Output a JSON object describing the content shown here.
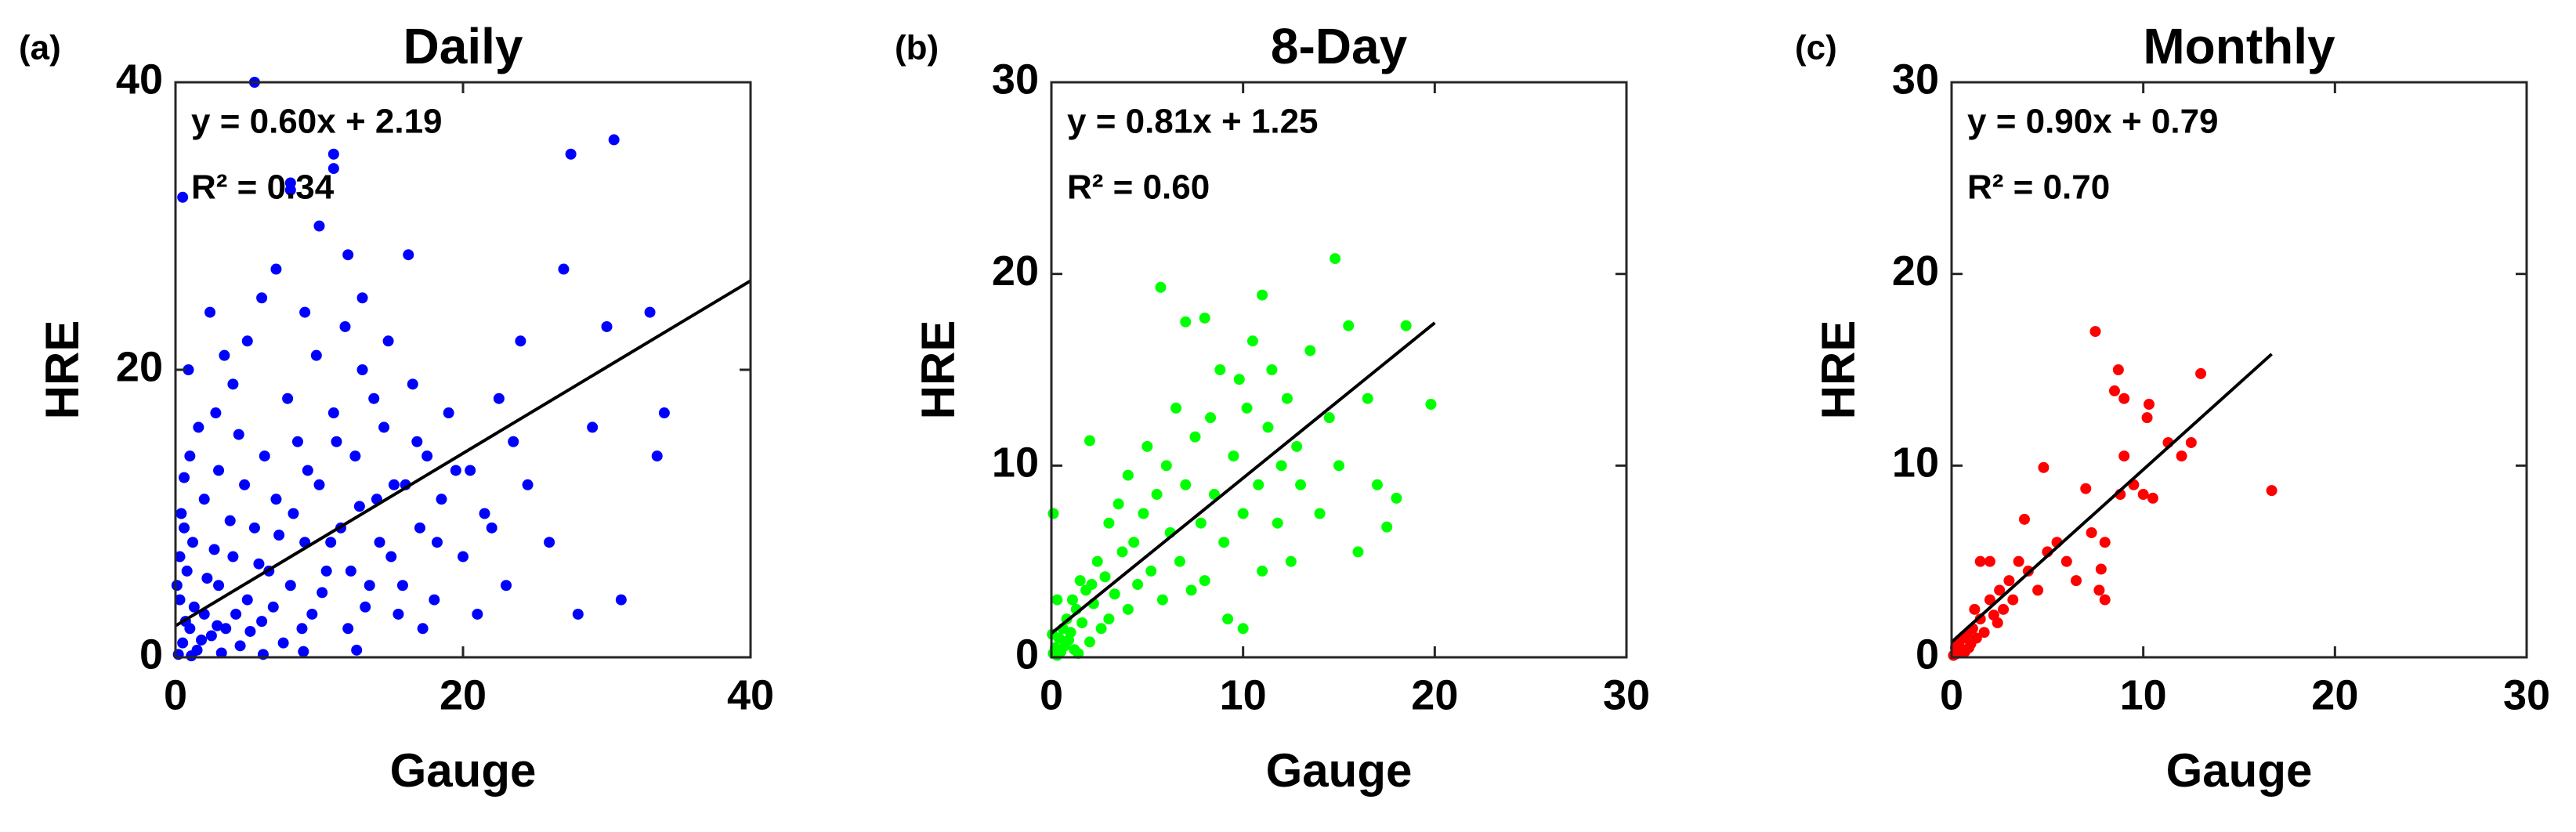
{
  "chart_data": [
    {
      "type": "scatter",
      "panel_label": "(a)",
      "title": "Daily",
      "equation": "y = 0.60x + 2.19",
      "r_squared": "R² = 0.34",
      "x_label": "Gauge",
      "y_label": "HRE",
      "xlim": [
        0,
        40
      ],
      "ylim": [
        0,
        40
      ],
      "xticks": [
        0,
        20,
        40
      ],
      "yticks": [
        0,
        20,
        40
      ],
      "series": [
        {
          "color": "#0000ff",
          "x": [
            0.5,
            1,
            0.3,
            1.5,
            2,
            0.8,
            2.5,
            3,
            1.2,
            0.4,
            3.5,
            4,
            2,
            4.5,
            5,
            1,
            5.5,
            6,
            3,
            6.5,
            7,
            0.6,
            7.5,
            8,
            2.8,
            8.5,
            9,
            4,
            9.5,
            10,
            5,
            10.5,
            11,
            6,
            11.5,
            12,
            7,
            12.5,
            13,
            8,
            13.5,
            14,
            9,
            14.5,
            15,
            10,
            15.5,
            16,
            11,
            16.5,
            17,
            12,
            17.5,
            18,
            13,
            18.5,
            19,
            20,
            20.5,
            21,
            22,
            22.5,
            23,
            24,
            24.5,
            26,
            27,
            27.5,
            28,
            29,
            30,
            30.5,
            31,
            33,
            33.5,
            34,
            5.5,
            0.5,
            8,
            11,
            0.2,
            0.7,
            1.3,
            1.8,
            2.2,
            2.7,
            3.2,
            3.8,
            4.2,
            4.8,
            5.2,
            5.8,
            6.2,
            6.8,
            7.2,
            7.8,
            8.2,
            8.8,
            9.2,
            9.8,
            10.2,
            10.8,
            11.2,
            11.8,
            12.2,
            12.8,
            13.2,
            13.8,
            14.2,
            14.8,
            15.2,
            15.8,
            16.2,
            16.8,
            17.2,
            18.2,
            19.5,
            21.5,
            23.5,
            0.9,
            1.6,
            2.4,
            3.4,
            4.4,
            0.1,
            0.3,
            1.1,
            2.9,
            6.1,
            8.9,
            12.6,
            0.6
          ],
          "values": [
            1,
            2,
            4,
            0.5,
            3,
            6,
            1.5,
            5,
            8,
            10,
            2,
            7,
            11,
            0.8,
            4,
            14,
            9,
            2.5,
            13,
            6,
            11,
            12.5,
            1,
            5,
            17,
            15,
            8,
            19,
            3,
            12,
            22,
            6,
            17,
            25,
            9,
            2,
            27,
            14,
            20,
            33,
            5,
            11,
            24,
            16,
            7,
            30,
            3,
            12,
            35,
            19,
            9,
            28,
            14,
            4,
            25,
            11,
            17,
            7,
            13,
            3,
            9,
            18,
            5,
            22,
            12,
            8,
            27,
            35,
            3,
            16,
            23,
            36,
            4,
            24,
            14,
            17,
            40,
            32,
            32.5,
            34,
            0.2,
            2.5,
            3.5,
            1.2,
            5.5,
            7.5,
            0.3,
            9.5,
            3,
            12,
            1.8,
            6.5,
            14,
            3.5,
            8.5,
            18,
            10,
            2,
            13,
            21,
            4.5,
            8,
            15,
            23,
            6,
            10.5,
            3.5,
            18,
            8,
            22,
            12,
            5,
            28,
            15,
            2,
            8,
            13,
            10,
            15,
            20,
            16,
            24,
            21,
            15.5,
            5,
            7,
            0.1,
            2.2,
            0.2,
            0.4,
            0.5,
            9
          ]
        }
      ],
      "fit_line": {
        "color": "#000000",
        "x": [
          0,
          40
        ],
        "values": [
          2.19,
          26.19
        ]
      }
    },
    {
      "type": "scatter",
      "panel_label": "(b)",
      "title": "8-Day",
      "equation": "y = 0.81x + 1.25",
      "r_squared": "R² = 0.60",
      "x_label": "Gauge",
      "y_label": "HRE",
      "xlim": [
        0,
        30
      ],
      "ylim": [
        0,
        30
      ],
      "xticks": [
        0,
        10,
        20,
        30
      ],
      "yticks": [
        0,
        10,
        20,
        30
      ],
      "series": [
        {
          "color": "#00ff00",
          "x": [
            0.1,
            0.2,
            0.3,
            0.4,
            0.5,
            0.6,
            0.7,
            0.8,
            0.9,
            1,
            1.1,
            1.2,
            1.3,
            1.5,
            1.6,
            1.8,
            2,
            2,
            2.2,
            2.4,
            2.6,
            2.8,
            3,
            3,
            3.3,
            3.5,
            3.7,
            4,
            4,
            4.3,
            4.5,
            4.8,
            5,
            5.2,
            5.5,
            5.7,
            5.8,
            6,
            6.2,
            6.5,
            6.7,
            7,
            7,
            7.3,
            7.5,
            7.8,
            8,
            8,
            8.3,
            8.5,
            8.8,
            9,
            9.2,
            9.5,
            9.8,
            10,
            10,
            10.2,
            10.5,
            10.8,
            11,
            11,
            11.3,
            11.5,
            11.8,
            12,
            12.3,
            12.5,
            12.8,
            13,
            13.5,
            14,
            14.5,
            14.8,
            15,
            15.5,
            16,
            16.5,
            17,
            17.5,
            18,
            18.5,
            19.8,
            0.1,
            0.3,
            1.4,
            2.1,
            0.05
          ],
          "values": [
            0.2,
            0.5,
            0.1,
            1,
            0.3,
            1.5,
            0.6,
            2,
            0.9,
            1.3,
            3,
            0.4,
            2.5,
            4,
            1.8,
            3.5,
            11.3,
            0.8,
            2.8,
            5,
            1.5,
            4.2,
            7,
            2,
            3.3,
            8,
            5.5,
            2.5,
            9.5,
            6,
            3.8,
            7.5,
            11,
            4.5,
            8.5,
            19.3,
            3,
            10,
            6.5,
            13,
            5,
            9,
            17.5,
            3.5,
            11.5,
            7,
            17.7,
            4,
            12.5,
            8.5,
            15,
            6,
            2,
            10.5,
            14.5,
            1.5,
            7.5,
            13,
            16.5,
            9,
            18.9,
            4.5,
            12,
            15,
            7,
            10,
            13.5,
            5,
            11,
            9,
            16,
            7.5,
            12.5,
            20.8,
            10,
            17.3,
            5.5,
            13.5,
            9,
            6.8,
            8.3,
            17.3,
            13.2,
            7.5,
            3,
            0.2,
            3.8,
            1.2
          ]
        }
      ],
      "fit_line": {
        "color": "#000000",
        "x": [
          0,
          20
        ],
        "values": [
          1.25,
          17.45
        ]
      }
    },
    {
      "type": "scatter",
      "panel_label": "(c)",
      "title": "Monthly",
      "equation": "y = 0.90x + 0.79",
      "r_squared": "R² = 0.70",
      "x_label": "Gauge",
      "y_label": "HRE",
      "xlim": [
        0,
        30
      ],
      "ylim": [
        0,
        30
      ],
      "xticks": [
        0,
        10,
        20,
        30
      ],
      "yticks": [
        0,
        10,
        20,
        30
      ],
      "series": [
        {
          "color": "#ff0000",
          "x": [
            0.1,
            0.2,
            0.3,
            0.4,
            0.5,
            0.6,
            0.7,
            0.8,
            1,
            1.1,
            1.3,
            1.5,
            1.5,
            1.7,
            2,
            2,
            2.2,
            2.4,
            2.5,
            2.7,
            3,
            3.2,
            3.5,
            3.8,
            4,
            4.5,
            4.8,
            5,
            5.5,
            6,
            6.5,
            7,
            7.3,
            7.5,
            7.7,
            7.8,
            8,
            8,
            8.5,
            8.7,
            8.8,
            9,
            9,
            9.5,
            10,
            10.2,
            10.3,
            10.5,
            11.3,
            12,
            12.5,
            13,
            16.7,
            0.9,
            1.2
          ],
          "values": [
            0.1,
            0.5,
            0.2,
            0.8,
            0.4,
            1,
            0.3,
            1.2,
            0.7,
            1.5,
            1,
            2,
            5,
            1.3,
            3,
            5,
            2.2,
            1.8,
            3.5,
            2.5,
            4,
            3,
            5,
            7.2,
            4.5,
            3.5,
            9.9,
            5.5,
            6,
            5,
            4,
            8.8,
            6.5,
            17,
            3.5,
            4.6,
            3,
            6,
            13.9,
            15,
            8.5,
            10.5,
            13.5,
            9,
            8.5,
            12.5,
            13.2,
            8.3,
            11.2,
            10.5,
            11.2,
            14.8,
            8.7,
            0.5,
            2.5
          ]
        }
      ],
      "fit_line": {
        "color": "#000000",
        "x": [
          0,
          16.7
        ],
        "values": [
          0.79,
          15.82
        ]
      }
    }
  ]
}
